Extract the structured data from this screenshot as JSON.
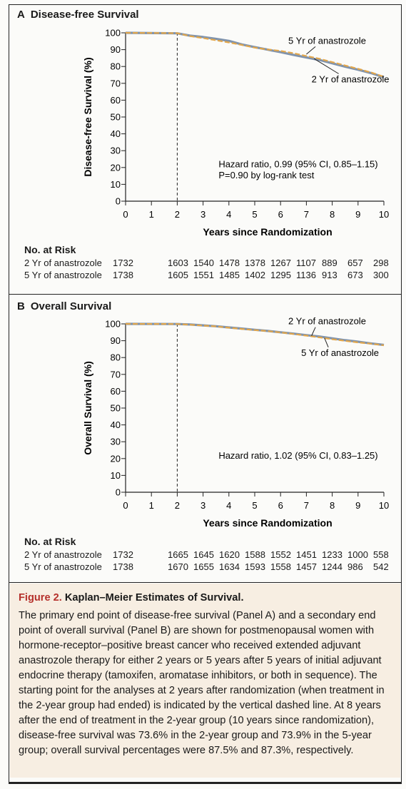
{
  "panels": [
    {
      "letter": "A",
      "title": "Disease-free Survival",
      "risk_header": "No. at Risk",
      "risk_rows": [
        {
          "label": "2 Yr of anastrozole",
          "values": [
            "1732",
            "1603",
            "1540",
            "1478",
            "1378",
            "1267",
            "1107",
            "889",
            "657",
            "298"
          ]
        },
        {
          "label": "5 Yr of anastrozole",
          "values": [
            "1738",
            "1605",
            "1551",
            "1485",
            "1402",
            "1295",
            "1136",
            "913",
            "673",
            "300"
          ]
        }
      ]
    },
    {
      "letter": "B",
      "title": "Overall Survival",
      "risk_header": "No. at Risk",
      "risk_rows": [
        {
          "label": "2 Yr of anastrozole",
          "values": [
            "1732",
            "1665",
            "1645",
            "1620",
            "1588",
            "1552",
            "1451",
            "1233",
            "1000",
            "558"
          ]
        },
        {
          "label": "5 Yr of anastrozole",
          "values": [
            "1738",
            "1670",
            "1655",
            "1634",
            "1593",
            "1558",
            "1457",
            "1244",
            "986",
            "542"
          ]
        }
      ]
    }
  ],
  "chart_data": [
    {
      "type": "line",
      "title": "Disease-free Survival",
      "xlabel": "Years since Randomization",
      "ylabel": "Disease-free Survival (%)",
      "xlim": [
        0,
        10
      ],
      "ylim": [
        0,
        100
      ],
      "xticks": [
        "0",
        "1",
        "2",
        "3",
        "4",
        "5",
        "6",
        "7",
        "8",
        "9",
        "10"
      ],
      "yticks": [
        "0",
        "10",
        "20",
        "30",
        "40",
        "50",
        "60",
        "70",
        "80",
        "90",
        "100"
      ],
      "vline_x": 2,
      "grid": false,
      "series": [
        {
          "name": "2 Yr of anastrozole",
          "color": "#7f93ad",
          "x": [
            0,
            2,
            2.5,
            3,
            3.5,
            4,
            4.5,
            5,
            5.5,
            6,
            6.5,
            7,
            7.5,
            8,
            8.5,
            9,
            9.5,
            10
          ],
          "y": [
            100,
            99.7,
            98.3,
            97.5,
            96.4,
            95.2,
            93.1,
            91.5,
            90.0,
            88.5,
            86.9,
            85.4,
            83.9,
            81.9,
            79.9,
            78.1,
            76.1,
            73.6
          ]
        },
        {
          "name": "5 Yr of anastrozole",
          "color": "#e1a64c",
          "x": [
            0,
            2,
            2.5,
            3,
            3.5,
            4,
            4.5,
            5,
            5.5,
            6,
            6.5,
            7,
            7.5,
            8,
            8.5,
            9,
            9.5,
            10
          ],
          "y": [
            100,
            99.8,
            98.0,
            96.9,
            95.6,
            94.3,
            92.8,
            91.2,
            90.1,
            89.3,
            87.9,
            86.2,
            84.6,
            82.6,
            80.6,
            78.6,
            76.5,
            73.9
          ]
        }
      ],
      "annotations": [
        {
          "text": "5 Yr of anastrozole",
          "x": 6.3,
          "y": 93.5,
          "arrow_to": [
            7.0,
            87.3
          ]
        },
        {
          "text": "2 Yr of anastrozole",
          "x": 7.2,
          "y": 70.6,
          "arrow_to": [
            7.3,
            84.6
          ]
        },
        {
          "text": "Hazard ratio, 0.99 (95% CI, 0.85–1.15)",
          "x": 3.6,
          "y": 20.2
        },
        {
          "text": "P=0.90 by log-rank test",
          "x": 3.6,
          "y": 13.5
        }
      ]
    },
    {
      "type": "line",
      "title": "Overall Survival",
      "xlabel": "Years since Randomization",
      "ylabel": "Overall Survival (%)",
      "xlim": [
        0,
        10
      ],
      "ylim": [
        0,
        100
      ],
      "xticks": [
        "0",
        "1",
        "2",
        "3",
        "4",
        "5",
        "6",
        "7",
        "8",
        "9",
        "10"
      ],
      "yticks": [
        "0",
        "10",
        "20",
        "30",
        "40",
        "50",
        "60",
        "70",
        "80",
        "90",
        "100"
      ],
      "vline_x": 2,
      "grid": false,
      "series": [
        {
          "name": "2 Yr of anastrozole",
          "color": "#7f93ad",
          "x": [
            0,
            2,
            2.5,
            3,
            3.5,
            4,
            4.5,
            5,
            5.5,
            6,
            6.5,
            7,
            7.5,
            8,
            8.5,
            9,
            9.5,
            10
          ],
          "y": [
            100,
            99.9,
            99.6,
            99.1,
            98.6,
            97.9,
            97.2,
            96.5,
            95.8,
            95.0,
            94.2,
            93.3,
            92.5,
            91.4,
            90.3,
            89.4,
            88.4,
            87.5
          ]
        },
        {
          "name": "5 Yr of anastrozole",
          "color": "#e1a64c",
          "x": [
            0,
            2,
            2.5,
            3,
            3.5,
            4,
            4.5,
            5,
            5.5,
            6,
            6.5,
            7,
            7.5,
            8,
            8.5,
            9,
            9.5,
            10
          ],
          "y": [
            100,
            99.9,
            99.5,
            99.0,
            98.5,
            97.7,
            97.0,
            96.3,
            95.7,
            94.9,
            94.0,
            93.0,
            92.0,
            90.9,
            89.9,
            89.0,
            88.2,
            87.3
          ]
        }
      ],
      "annotations": [
        {
          "text": "2 Yr of anastrozole",
          "x": 6.3,
          "y": 99.7,
          "arrow_to": [
            7.2,
            92.9
          ]
        },
        {
          "text": "5 Yr of anastrozole",
          "x": 6.8,
          "y": 81.0,
          "arrow_to": [
            7.7,
            91.6
          ]
        },
        {
          "text": "Hazard ratio, 1.02 (95% CI, 0.83–1.25)",
          "x": 3.6,
          "y": 20.0
        }
      ]
    }
  ],
  "caption": {
    "figure_label": "Figure 2.",
    "title": "Kaplan–Meier Estimates of Survival.",
    "body": "The primary end point of disease-free survival (Panel A) and a secondary end point of overall survival (Panel B) are shown for postmenopausal women with hormone-receptor–positive breast cancer who received extended adjuvant anastrozole therapy for either 2 years or 5 years after 5 years of initial adjuvant endocrine therapy (tamoxifen, aromatase inhibitors, or both in sequence). The starting point for the analyses at 2 years after randomization (when treatment in the 2-year group had ended) is indicated by the vertical dashed line. At 8 years after the end of treatment in the 2-year group (10 years since randomization), disease-free survival was 73.6% in the 2-year group and 73.9% in the 5-year group; overall survival percentages were 87.5% and 87.3%, respectively."
  }
}
